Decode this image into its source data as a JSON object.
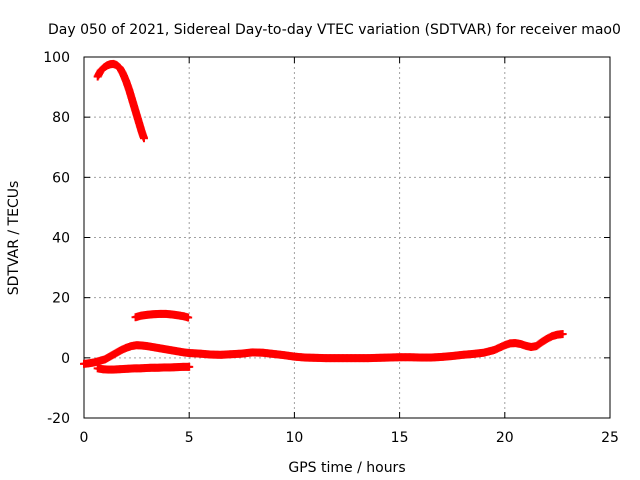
{
  "chart_data": {
    "type": "scatter",
    "title": "Day 050 of 2021, Sidereal Day-to-day VTEC variation (SDTVAR) for receiver mao0",
    "xlabel": "GPS time / hours",
    "ylabel": "SDTVAR / TECUs",
    "xlim": [
      0,
      25
    ],
    "ylim": [
      -20,
      100
    ],
    "xticks": [
      "0",
      "5",
      "10",
      "15",
      "20",
      "25"
    ],
    "yticks": [
      "-20",
      "0",
      "20",
      "40",
      "60",
      "80",
      "100"
    ],
    "grid": true,
    "marker_color": "#ff0000",
    "series": [
      {
        "name": "high-arc",
        "x": [
          0.65,
          0.8,
          0.95,
          1.1,
          1.25,
          1.4,
          1.55,
          1.7,
          1.85,
          2.0,
          2.15,
          2.3,
          2.45,
          2.6,
          2.75,
          2.85
        ],
        "y": [
          93.5,
          95.5,
          96.5,
          97.2,
          97.6,
          97.7,
          97.3,
          96.4,
          94.5,
          92.0,
          89.0,
          85.5,
          82.0,
          78.5,
          75.0,
          73.0
        ]
      },
      {
        "name": "mid-arc",
        "x": [
          2.45,
          2.7,
          3.0,
          3.3,
          3.6,
          3.9,
          4.2,
          4.5,
          4.75,
          4.95
        ],
        "y": [
          13.5,
          14.0,
          14.3,
          14.5,
          14.6,
          14.6,
          14.4,
          14.1,
          13.8,
          13.4
        ]
      },
      {
        "name": "low-arc",
        "x": [
          0.65,
          0.9,
          1.15,
          1.4,
          1.65,
          1.9,
          2.15,
          2.4,
          2.65,
          2.9,
          3.2,
          3.5,
          3.8,
          4.1,
          4.4,
          4.7,
          5.0
        ],
        "y": [
          -3.5,
          -3.8,
          -3.9,
          -3.9,
          -3.8,
          -3.7,
          -3.6,
          -3.5,
          -3.5,
          -3.4,
          -3.3,
          -3.3,
          -3.2,
          -3.2,
          -3.1,
          -3.0,
          -3.0
        ]
      },
      {
        "name": "main-trace",
        "x": [
          0.0,
          0.25,
          0.5,
          0.75,
          1.0,
          1.25,
          1.5,
          1.75,
          2.0,
          2.25,
          2.5,
          2.75,
          3.0,
          3.25,
          3.5,
          3.75,
          4.0,
          4.25,
          4.5,
          4.75,
          5.0,
          5.5,
          6.0,
          6.5,
          7.0,
          7.5,
          8.0,
          8.5,
          9.0,
          9.5,
          10.0,
          10.5,
          11.0,
          11.5,
          12.0,
          12.5,
          13.0,
          13.5,
          14.0,
          14.5,
          15.0,
          15.5,
          16.0,
          16.5,
          17.0,
          17.5,
          18.0,
          18.5,
          19.0,
          19.5,
          20.0,
          20.25,
          20.5,
          20.75,
          21.0,
          21.25,
          21.5,
          21.75,
          22.0,
          22.25,
          22.5,
          22.75
        ],
        "y": [
          -2.0,
          -1.8,
          -1.5,
          -1.0,
          -0.5,
          0.5,
          1.5,
          2.5,
          3.3,
          3.9,
          4.2,
          4.1,
          3.9,
          3.6,
          3.3,
          3.0,
          2.7,
          2.4,
          2.1,
          1.8,
          1.6,
          1.4,
          1.1,
          1.0,
          1.2,
          1.4,
          1.8,
          1.7,
          1.3,
          0.9,
          0.4,
          0.1,
          0.0,
          -0.1,
          -0.1,
          -0.1,
          -0.1,
          -0.1,
          0.0,
          0.1,
          0.2,
          0.2,
          0.1,
          0.1,
          0.3,
          0.6,
          1.0,
          1.3,
          1.7,
          2.6,
          4.2,
          4.8,
          4.9,
          4.6,
          4.0,
          3.6,
          3.9,
          5.2,
          6.3,
          7.2,
          7.7,
          7.9
        ]
      }
    ]
  }
}
